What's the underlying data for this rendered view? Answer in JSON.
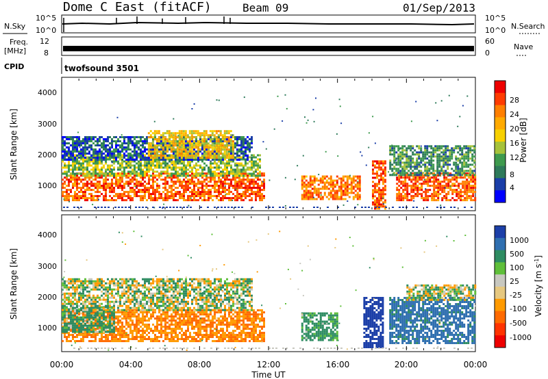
{
  "header": {
    "station": "Dome C East (fitACF)",
    "beam": "Beam 09",
    "date": "01/Sep/2013"
  },
  "status_panels": {
    "nsky_label": "N.Sky",
    "nsky_ticks": [
      "10^5",
      "10^0"
    ],
    "nsearch_label": "N.Search",
    "nsearch_ticks": [
      "10^5",
      "10^0"
    ],
    "freq_label": "Freq.",
    "freq_unit": "[MHz]",
    "freq_ticks": [
      "12",
      "8"
    ],
    "nave_label": "Nave",
    "nave_ticks": [
      "60",
      "0"
    ],
    "cpid_label": "CPID",
    "cpid_value": "twofsound 3501"
  },
  "power_colorbar": {
    "title": "Power [dB]",
    "ticks": [
      "28",
      "24",
      "20",
      "16",
      "12",
      "8",
      "4"
    ],
    "colors": [
      "#ee0000",
      "#ff3b00",
      "#ff7f00",
      "#ffaa00",
      "#f7d000",
      "#a6c23a",
      "#3e9a4e",
      "#2e7a5a",
      "#1a3ea8",
      "#0000ff"
    ]
  },
  "velocity_colorbar": {
    "title": "Velocity [m s^-1]",
    "ticks": [
      "1000",
      "500",
      "100",
      "25",
      "-25",
      "-100",
      "-500",
      "-1000"
    ],
    "colors": [
      "#1c3fa8",
      "#2f6fb0",
      "#2e8c62",
      "#5fbf3a",
      "#c8c8c0",
      "#e6c880",
      "#ff9a00",
      "#ff6a00",
      "#ff3300",
      "#ee0000"
    ]
  },
  "axes": {
    "ylabel": "Slant Range [km]",
    "xlabel": "Time UT",
    "yticks": [
      "4000",
      "3000",
      "2000",
      "1000"
    ],
    "xticks": [
      "00:00",
      "04:00",
      "08:00",
      "12:00",
      "16:00",
      "20:00",
      "00:00"
    ]
  },
  "chart_data": [
    {
      "type": "heatmap",
      "name": "power",
      "ylabel": "Slant Range [km]",
      "x_range_hours": [
        0,
        24
      ],
      "y_range_km": [
        180,
        4500
      ],
      "blobs": [
        {
          "t0": 0.0,
          "t1": 11.7,
          "r0": 500,
          "r1": 1400,
          "value": 26
        },
        {
          "t0": 0.0,
          "t1": 11.5,
          "r0": 1300,
          "r1": 2000,
          "value": 14
        },
        {
          "t0": 0.0,
          "t1": 11.0,
          "r0": 1800,
          "r1": 2600,
          "value": 6
        },
        {
          "t0": 5.0,
          "t1": 10.0,
          "r0": 1900,
          "r1": 2800,
          "value": 18
        },
        {
          "t0": 13.9,
          "t1": 17.3,
          "r0": 500,
          "r1": 1300,
          "value": 24
        },
        {
          "t0": 18.0,
          "t1": 18.8,
          "r0": 200,
          "r1": 1800,
          "value": 26
        },
        {
          "t0": 19.4,
          "t1": 24.0,
          "r0": 500,
          "r1": 1400,
          "value": 26
        },
        {
          "t0": 19.0,
          "t1": 24.0,
          "r0": 1300,
          "r1": 2300,
          "value": 10
        }
      ]
    },
    {
      "type": "heatmap",
      "name": "velocity",
      "ylabel": "Slant Range [km]",
      "x_range_hours": [
        0,
        24
      ],
      "y_range_km": [
        180,
        4500
      ],
      "blobs": [
        {
          "t0": 0.0,
          "t1": 11.7,
          "r0": 450,
          "r1": 1500,
          "value": -300
        },
        {
          "t0": 0.0,
          "t1": 3.0,
          "r0": 800,
          "r1": 1600,
          "value": 120
        },
        {
          "t0": 0.0,
          "t1": 11.0,
          "r0": 1500,
          "r1": 2500,
          "value": 5
        },
        {
          "t0": 13.9,
          "t1": 16.0,
          "r0": 500,
          "r1": 1400,
          "value": 150
        },
        {
          "t0": 17.5,
          "t1": 18.6,
          "r0": 300,
          "r1": 1900,
          "value": 900
        },
        {
          "t0": 19.0,
          "t1": 24.0,
          "r0": 400,
          "r1": 1900,
          "value": 400
        },
        {
          "t0": 20.0,
          "t1": 24.0,
          "r0": 1800,
          "r1": 2300,
          "value": 10
        }
      ]
    }
  ]
}
